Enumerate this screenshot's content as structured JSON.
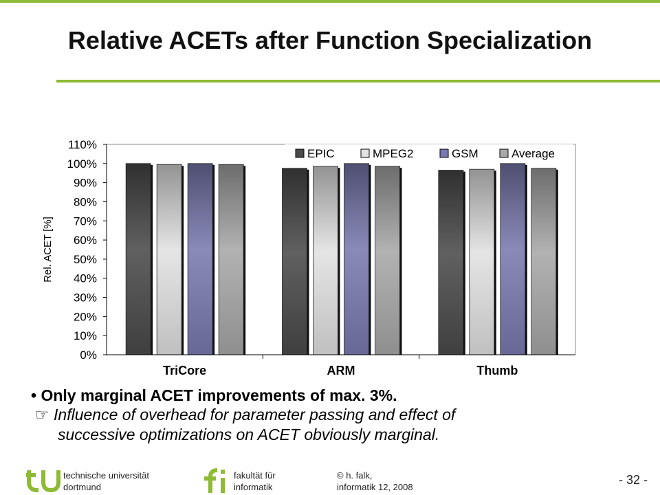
{
  "slide": {
    "title": "Relative ACETs after Function Specialization"
  },
  "chart_data": {
    "type": "bar",
    "categories": [
      "TriCore",
      "ARM",
      "Thumb"
    ],
    "series": [
      {
        "name": "EPIC",
        "values": [
          100,
          97.5,
          96.5
        ],
        "color": "#4a4a4a"
      },
      {
        "name": "MPEG2",
        "values": [
          99.5,
          98.5,
          97
        ],
        "color": "#e2e2e2"
      },
      {
        "name": "GSM",
        "values": [
          100,
          100,
          100
        ],
        "color": "#7a7ab0"
      },
      {
        "name": "Average",
        "values": [
          99.5,
          98.5,
          97.5
        ],
        "color": "#a8a8a8"
      }
    ],
    "ylabel": "Rel. ACET [%]",
    "yticks": [
      "0%",
      "10%",
      "20%",
      "30%",
      "40%",
      "50%",
      "60%",
      "70%",
      "80%",
      "90%",
      "100%",
      "110%"
    ],
    "ylim": [
      0,
      110
    ],
    "grid": false,
    "legend": "top-right"
  },
  "bullets": {
    "main": "Only marginal ACET improvements of max. 3%.",
    "sub_symbol": "☞",
    "sub_line1": "Influence of overhead for parameter passing and effect of",
    "sub_line2": "successive optimizations on ACET obviously marginal."
  },
  "footer": {
    "univ_line1": "technische universität",
    "univ_line2": "dortmund",
    "fak_line1": "fakultät für",
    "fak_line2": "informatik",
    "author_line1": "© h. falk,",
    "author_line2": "informatik 12,  2008",
    "page": "- 32 -",
    "brand_color": "#8dbb35"
  }
}
